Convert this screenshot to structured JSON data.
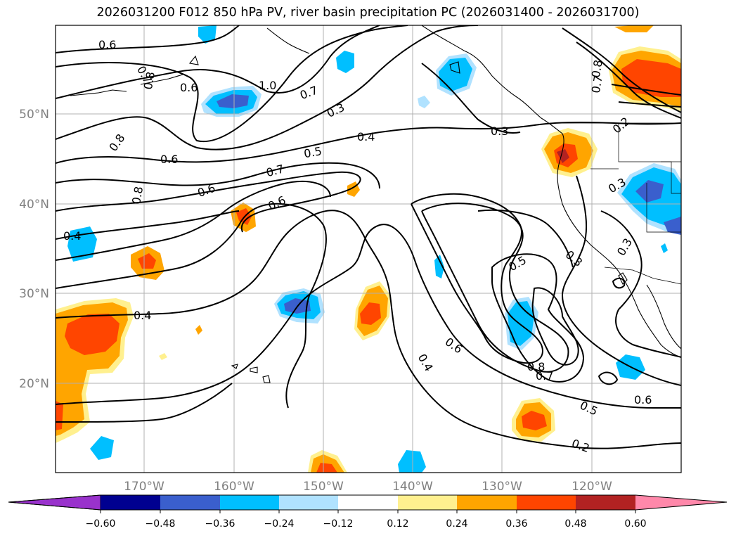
{
  "title": "2026031200 F012 850 hPa PV, river basin precipitation PC (2026031400 - 2026031700)",
  "lat_labels": [
    "50°N",
    "40°N",
    "30°N",
    "20°N"
  ],
  "lon_labels": [
    "170°W",
    "160°W",
    "150°W",
    "140°W",
    "130°W",
    "120°W"
  ],
  "contour_labels": [
    "0.6",
    "0.7",
    "0.8",
    "0.6",
    "1.0",
    "0.7",
    "0.3",
    "0.8",
    "0.6",
    "0.5",
    "0.4",
    "0.3",
    "0.6",
    "0.7",
    "0.6",
    "0.8",
    "0.4",
    "0.5",
    "0.3",
    "0.3",
    "0.4",
    "0.3",
    "0.6",
    "0.4",
    "0.8",
    "0.7",
    "0.5",
    "0.2",
    "0.6",
    "0.2",
    "0.8",
    "0.7"
  ],
  "colorbar": {
    "ticks": [
      "−0.60",
      "−0.48",
      "−0.36",
      "−0.24",
      "−0.12",
      "0.12",
      "0.24",
      "0.36",
      "0.48",
      "0.60"
    ],
    "colors": {
      "under": "#9932cc",
      "bins": [
        "#000090",
        "#3a5fcd",
        "#00bfff",
        "#b0e2ff",
        "#ffffff",
        "#fff08f",
        "#ffa500",
        "#ff4500",
        "#b22222",
        "#ff88aa"
      ],
      "over": "#ff88aa"
    }
  },
  "colors": {
    "positive_orange": "#ffa500",
    "positive_red": "#ff4500",
    "positive_yellow": "#fff08f",
    "negative_sky": "#00bfff",
    "negative_blue": "#3a5fcd",
    "negative_light": "#b0e2ff",
    "gridline": "#b0b0b0",
    "axis_label": "#808080"
  }
}
